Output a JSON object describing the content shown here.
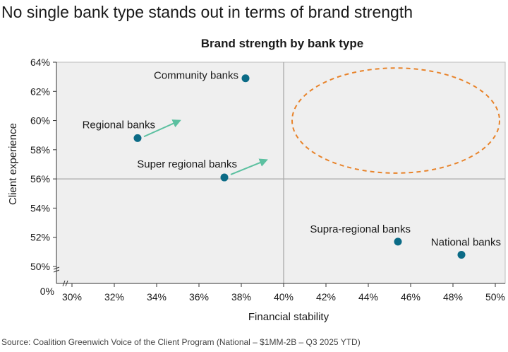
{
  "headline": "No single bank type stands out in terms of brand strength",
  "source": "Source: Coalition Greenwich Voice of the Client Program (National – $1MM-2B – Q3 2025 YTD)",
  "chart_data": {
    "type": "scatter",
    "title": "Brand strength by bank type",
    "xlabel": "Financial stability",
    "ylabel": "Client experience",
    "xlim": [
      29.3,
      50.5
    ],
    "ylim": [
      49.4,
      64
    ],
    "x_ticks": [
      30,
      32,
      34,
      36,
      38,
      40,
      42,
      44,
      46,
      48,
      50
    ],
    "x_tick_labels": [
      "30%",
      "32%",
      "34%",
      "36%",
      "38%",
      "40%",
      "42%",
      "44%",
      "46%",
      "48%",
      "50%"
    ],
    "y_ticks": [
      50,
      52,
      54,
      56,
      58,
      60,
      62,
      64
    ],
    "y_tick_labels": [
      "50%",
      "52%",
      "54%",
      "56%",
      "58%",
      "60%",
      "62%",
      "64%"
    ],
    "y_axis_origin_label": "0%",
    "axis_break": true,
    "grid": false,
    "quadrant_lines": {
      "x": 40,
      "y": 56
    },
    "colors": {
      "point": "#0b6b86",
      "arrow": "#5cc0a0",
      "ellipse": "#e8832a",
      "plot_bg": "#efefef",
      "quadrant_line": "#aaaaaa"
    },
    "points": [
      {
        "label": "Community banks",
        "x": 38.2,
        "y": 62.9
      },
      {
        "label": "Regional banks",
        "x": 33.1,
        "y": 58.8
      },
      {
        "label": "Super regional banks",
        "x": 37.2,
        "y": 56.1
      },
      {
        "label": "Supra-regional banks",
        "x": 45.4,
        "y": 51.7
      },
      {
        "label": "National banks",
        "x": 48.4,
        "y": 50.8
      }
    ],
    "arrows": [
      {
        "from": [
          33.4,
          58.9
        ],
        "to": [
          35.1,
          60.0
        ]
      },
      {
        "from": [
          37.5,
          56.3
        ],
        "to": [
          39.2,
          57.3
        ]
      }
    ],
    "ellipse": {
      "cx": 45.3,
      "cy": 60.0,
      "rx": 4.9,
      "ry": 3.6,
      "style": "dashed"
    }
  }
}
